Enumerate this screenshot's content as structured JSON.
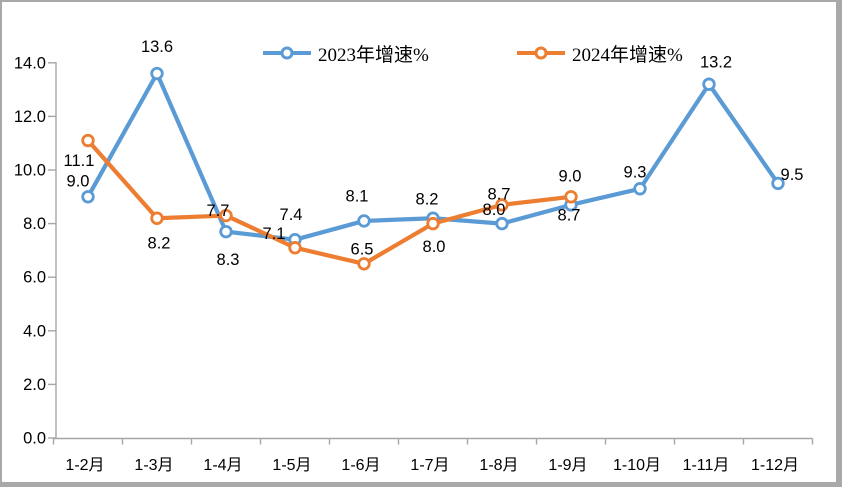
{
  "chart_data": {
    "type": "line",
    "title": "",
    "xlabel": "",
    "ylabel": "",
    "categories": [
      "1-2月",
      "1-3月",
      "1-4月",
      "1-5月",
      "1-6月",
      "1-7月",
      "1-8月",
      "1-9月",
      "1-10月",
      "1-11月",
      "1-12月"
    ],
    "series": [
      {
        "name": "2023年增速%",
        "color": "#5B9BD5",
        "values": [
          9.0,
          13.6,
          7.7,
          7.4,
          8.1,
          8.2,
          8.0,
          8.7,
          9.3,
          13.2,
          9.5
        ],
        "label_offsets": [
          [
            -10,
            -16
          ],
          [
            0,
            -27
          ],
          [
            -8,
            -21
          ],
          [
            -4,
            -25
          ],
          [
            -7,
            -25
          ],
          [
            -6,
            -19
          ],
          [
            -8,
            -14
          ],
          [
            -2,
            10
          ],
          [
            -5,
            -17
          ],
          [
            7,
            -22
          ],
          [
            14,
            -9
          ]
        ]
      },
      {
        "name": "2024年增速%",
        "color": "#ED7D31",
        "values": [
          11.1,
          8.2,
          8.3,
          7.1,
          6.5,
          8.0,
          8.7,
          9.0
        ],
        "label_offsets": [
          [
            -9,
            20
          ],
          [
            2,
            25
          ],
          [
            2,
            44
          ],
          [
            -21,
            -14
          ],
          [
            -2,
            -15
          ],
          [
            1,
            23
          ],
          [
            -3,
            -11
          ],
          [
            -1,
            -21
          ]
        ]
      }
    ],
    "ylim": [
      0,
      14
    ],
    "ytick_step": 2,
    "ytick_labels": [
      "0.0",
      "2.0",
      "4.0",
      "6.0",
      "8.0",
      "10.0",
      "12.0",
      "14.0"
    ],
    "grid": false,
    "legend_position": "top",
    "marker_style": "open-circle",
    "axis_color": "#a6a6a6",
    "text_color": "#000000",
    "background_color": "#ffffff",
    "frame_color": "#a9a9a9"
  }
}
